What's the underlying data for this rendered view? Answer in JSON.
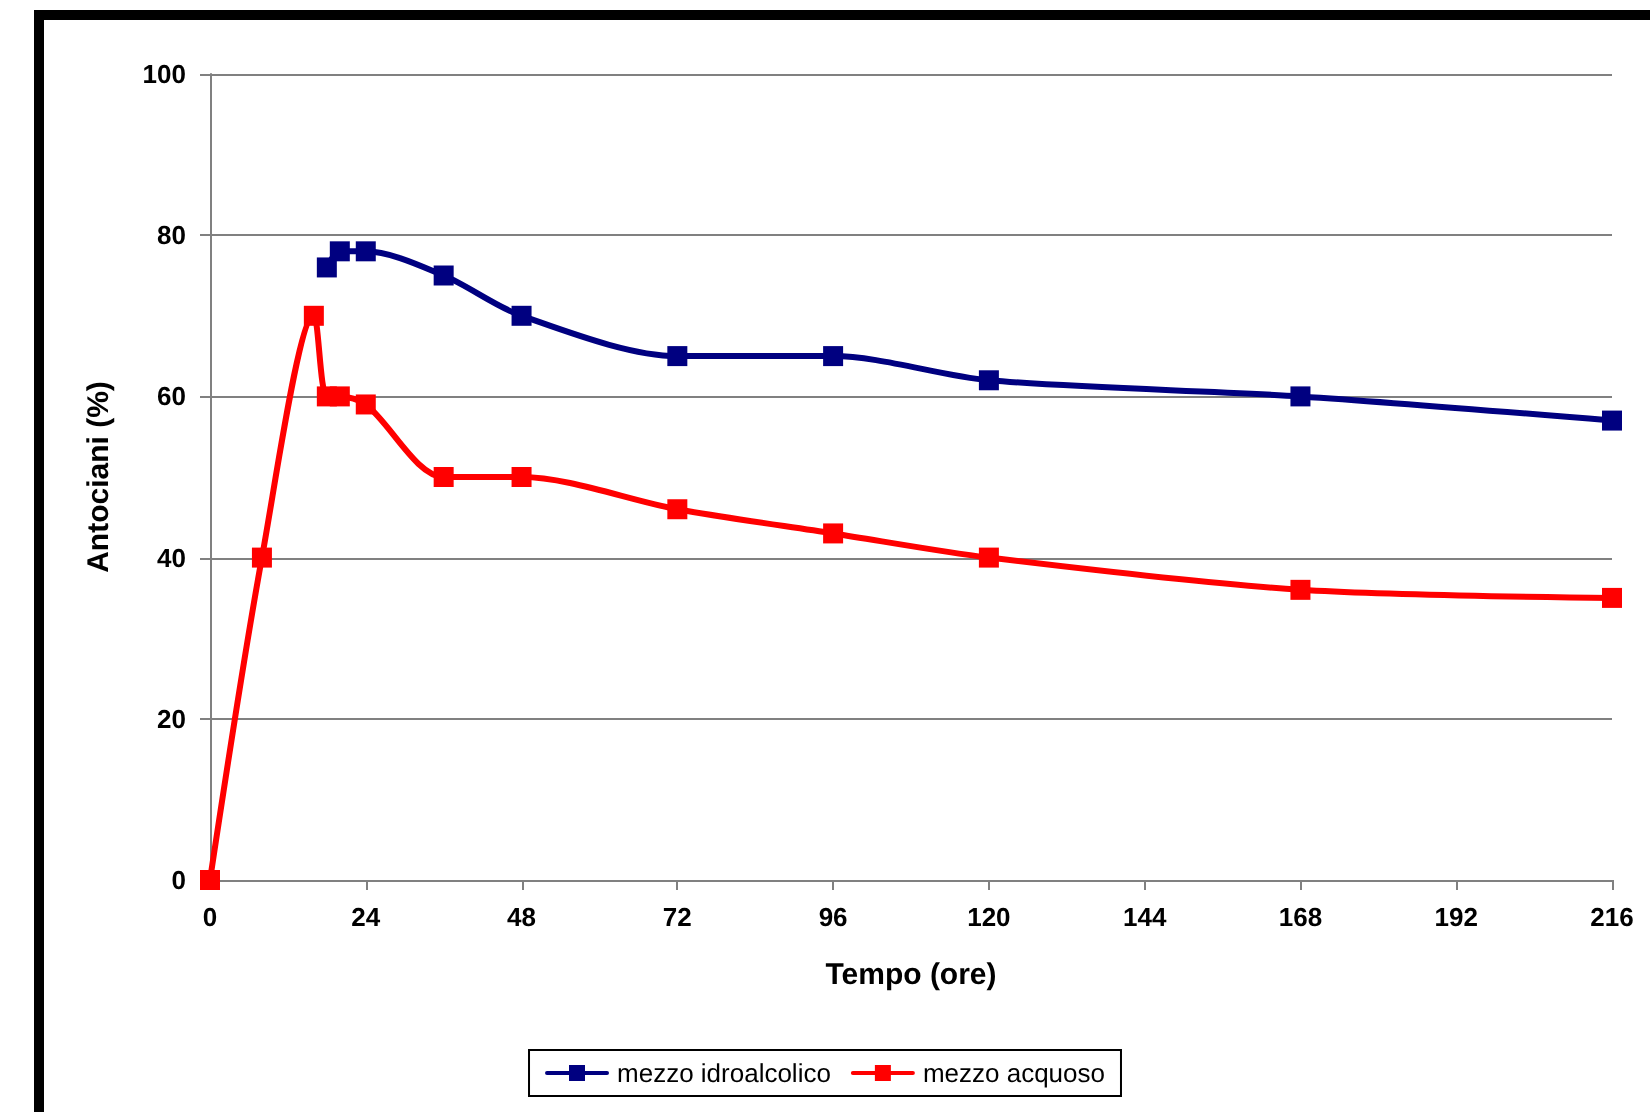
{
  "chart_data": {
    "type": "line",
    "xlabel": "Tempo (ore)",
    "ylabel": "Antociani (%)",
    "xlim": [
      0,
      216
    ],
    "xticks": [
      0,
      24,
      48,
      72,
      96,
      120,
      144,
      168,
      192,
      216
    ],
    "ylim": [
      0,
      100
    ],
    "yticks": [
      0,
      20,
      40,
      60,
      80,
      100
    ],
    "grid": "y",
    "legend": "bottom",
    "marker": "square",
    "line_style": "solid",
    "series": [
      {
        "name": "mezzo idroalcolico",
        "color": "#000080",
        "x": [
          18,
          20,
          24,
          36,
          48,
          72,
          96,
          120,
          168,
          216
        ],
        "values": [
          76,
          78,
          78,
          75,
          70,
          65,
          65,
          62,
          60,
          57
        ]
      },
      {
        "name": "mezzo acquoso",
        "color": "#ff0000",
        "x": [
          0,
          8,
          16,
          18,
          20,
          24,
          36,
          48,
          72,
          96,
          120,
          168,
          216
        ],
        "values": [
          0,
          40,
          70,
          60,
          60,
          59,
          50,
          50,
          46,
          43,
          40,
          36,
          35
        ]
      }
    ]
  }
}
